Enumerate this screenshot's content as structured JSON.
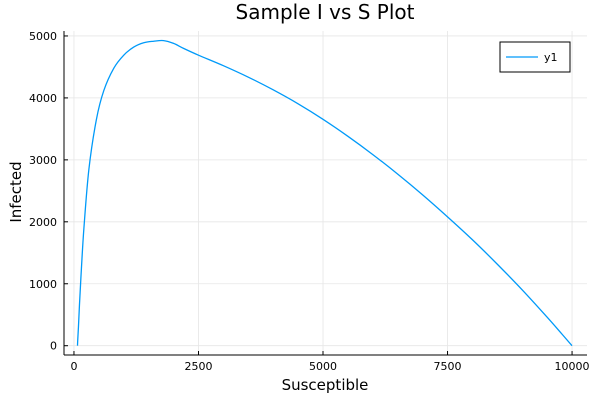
{
  "chart_data": {
    "type": "line",
    "title": "Sample I vs S Plot",
    "xlabel": "Susceptible",
    "ylabel": "Infected",
    "xlim": [
      -200,
      10300
    ],
    "ylim": [
      -150,
      5080
    ],
    "xticks": [
      0,
      2500,
      5000,
      7500,
      10000
    ],
    "yticks": [
      0,
      1000,
      2000,
      3000,
      4000,
      5000
    ],
    "grid": true,
    "legend_position": "top-right",
    "series": [
      {
        "name": "y1",
        "color": "#009af9",
        "x": [
          9999,
          9800,
          9500,
          9000,
          8500,
          8000,
          7500,
          7000,
          6500,
          6000,
          5500,
          5000,
          4500,
          4000,
          3500,
          3000,
          2500,
          2200,
          2000,
          1800,
          1600,
          1400,
          1200,
          1000,
          800,
          600,
          450,
          300,
          200,
          150,
          110,
          90,
          75,
          71
        ],
        "y": [
          1,
          185,
          460,
          900,
          1315,
          1710,
          2080,
          2435,
          2770,
          3085,
          3380,
          3655,
          3905,
          4130,
          4335,
          4520,
          4690,
          4800,
          4880,
          4925,
          4915,
          4890,
          4820,
          4690,
          4480,
          4120,
          3650,
          2850,
          1900,
          1250,
          650,
          300,
          80,
          0
        ]
      }
    ]
  }
}
